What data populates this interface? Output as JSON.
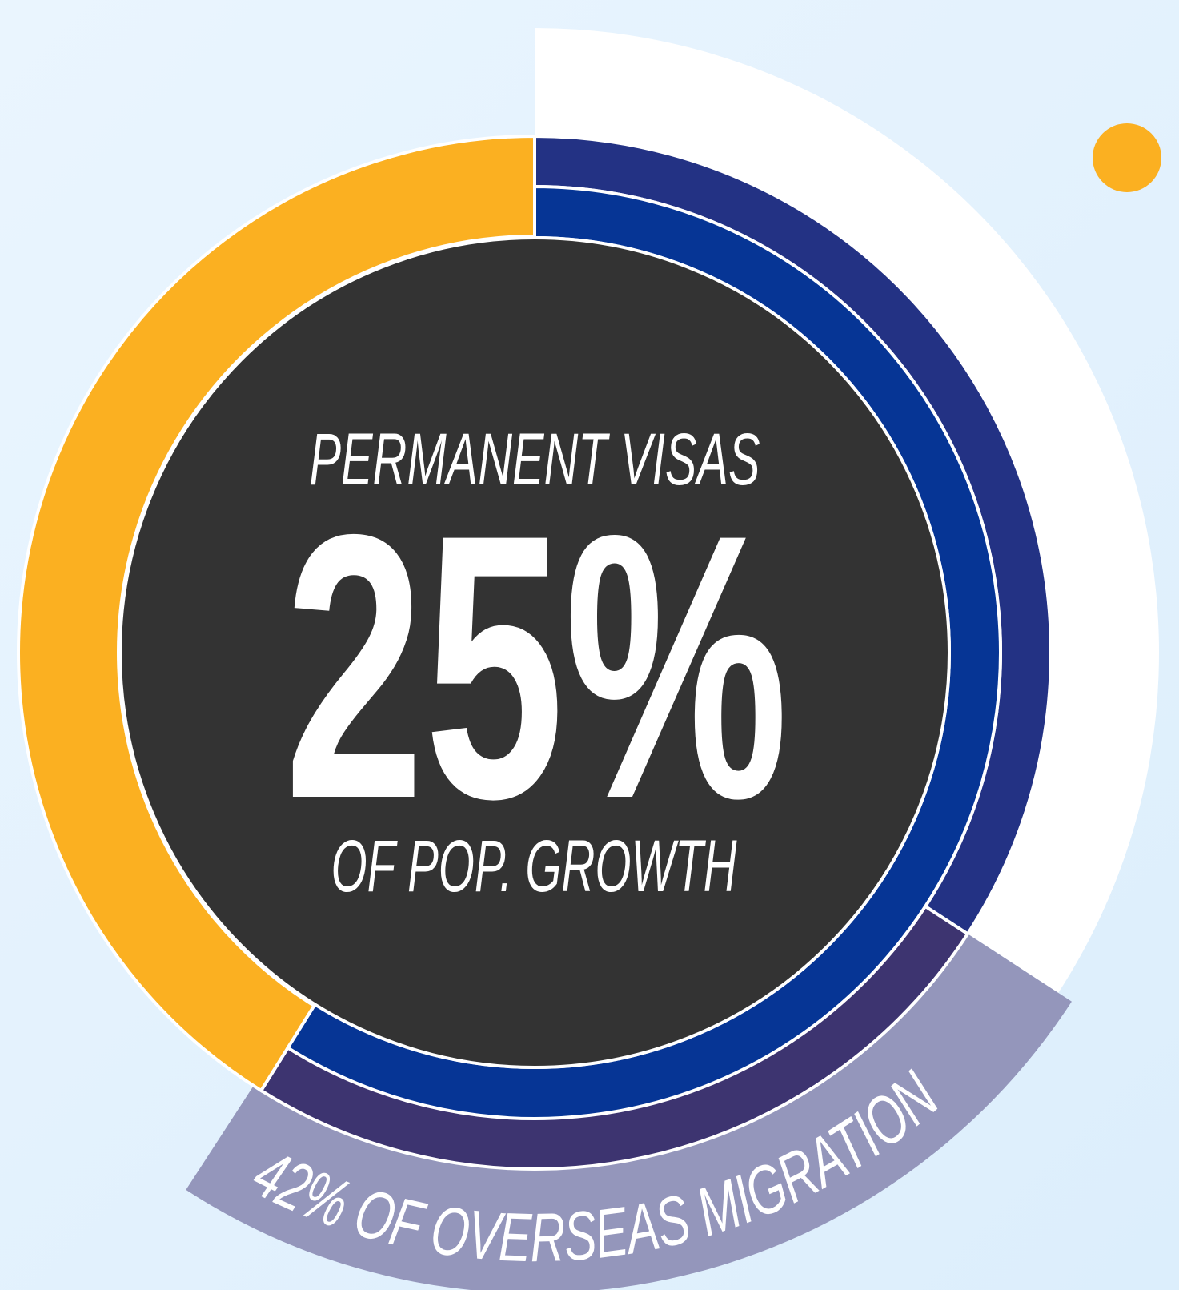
{
  "center": {
    "heading": "PERMANENT VISAS",
    "value": "25%",
    "caption": "OF POP. GROWTH"
  },
  "band_label": "42% OF OVERSEAS MIGRATION"
}
